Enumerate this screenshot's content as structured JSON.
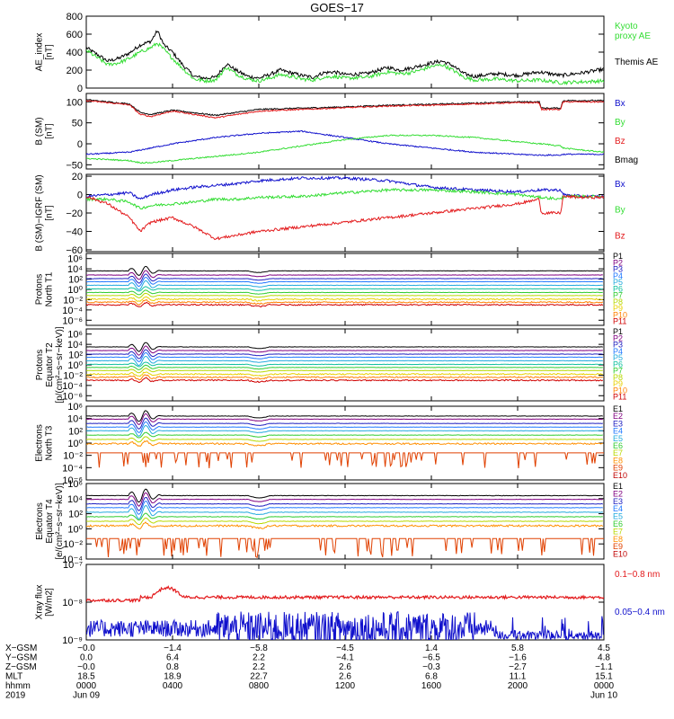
{
  "title": "GOES−17",
  "colors": {
    "black": "#000000",
    "red": "#e31a1c",
    "green": "#33dd33",
    "blue": "#1010cc",
    "p_colors": [
      "#000000",
      "#800080",
      "#2020c0",
      "#1f78ff",
      "#22aadd",
      "#10c0a0",
      "#30cc30",
      "#b8d800",
      "#e8d000",
      "#ff8000",
      "#d00000"
    ],
    "e_colors": [
      "#000000",
      "#800080",
      "#2020c0",
      "#1f78ff",
      "#22aadd",
      "#30cc30",
      "#b8d800",
      "#ff9000",
      "#e04000",
      "#c00000"
    ]
  },
  "chart_data": [
    {
      "type": "line",
      "ylabel": [
        "AE_index",
        "[nT]"
      ],
      "ylim": [
        0,
        800
      ],
      "yticks": [
        "800",
        "600",
        "400",
        "200",
        "0"
      ],
      "legend": [
        {
          "name": "Kyoto proxy AE",
          "lines": [
            "Kyoto",
            "proxy AE"
          ],
          "color": "#33dd33"
        },
        {
          "name": "Themis AE",
          "lines": [
            "Themis AE"
          ],
          "color": "#000000"
        }
      ],
      "x": [
        0,
        1,
        1.5,
        2,
        2.5,
        3,
        3.3,
        3.6,
        4,
        4.5,
        5,
        5.5,
        6,
        6.5,
        7,
        7.5,
        8,
        8.5,
        9,
        9.5,
        10,
        10.5,
        11,
        11.5,
        12,
        13,
        14,
        14.5,
        15,
        15.5,
        16,
        16.5,
        17,
        17.5,
        18,
        19,
        20,
        21,
        22,
        23,
        24
      ],
      "series": [
        {
          "name": "Themis AE",
          "color": "#000000",
          "values": [
            450,
            300,
            330,
            390,
            480,
            520,
            640,
            480,
            400,
            250,
            130,
            110,
            120,
            270,
            190,
            130,
            110,
            150,
            200,
            170,
            140,
            120,
            170,
            180,
            150,
            160,
            230,
            200,
            220,
            250,
            280,
            300,
            250,
            160,
            130,
            160,
            140,
            180,
            140,
            170,
            210
          ]
        },
        {
          "name": "Kyoto proxy AE",
          "color": "#33dd33",
          "values": [
            420,
            260,
            280,
            330,
            400,
            450,
            500,
            430,
            330,
            210,
            100,
            80,
            90,
            230,
            150,
            100,
            80,
            110,
            150,
            130,
            100,
            90,
            120,
            130,
            110,
            120,
            180,
            160,
            170,
            200,
            240,
            260,
            200,
            120,
            90,
            100,
            80,
            90,
            60,
            70,
            80
          ]
        }
      ]
    },
    {
      "type": "line",
      "ylabel": [
        "B (SM)",
        "[nT]"
      ],
      "ylim": [
        -60,
        120
      ],
      "yticks": [
        "100",
        "50",
        "0",
        "−50"
      ],
      "legend": [
        {
          "name": "Bx",
          "lines": [
            "Bx"
          ],
          "color": "#1010cc"
        },
        {
          "name": "By",
          "lines": [
            "By"
          ],
          "color": "#33dd33"
        },
        {
          "name": "Bz",
          "lines": [
            "Bz"
          ],
          "color": "#e31a1c"
        },
        {
          "name": "Bmag",
          "lines": [
            "Bmag"
          ],
          "color": "#000000"
        }
      ],
      "x": [
        0,
        2,
        2.5,
        3,
        4,
        6,
        8,
        10,
        12,
        14,
        16,
        18,
        20,
        21,
        21.1,
        22,
        22.1,
        23,
        24
      ],
      "series": [
        {
          "name": "Bmag",
          "color": "#000000",
          "values": [
            105,
            95,
            75,
            70,
            80,
            68,
            82,
            85,
            88,
            92,
            94,
            97,
            100,
            100,
            85,
            85,
            103,
            103,
            103
          ]
        },
        {
          "name": "Bz",
          "color": "#e31a1c",
          "values": [
            103,
            93,
            70,
            65,
            78,
            62,
            78,
            82,
            86,
            90,
            92,
            95,
            98,
            98,
            82,
            82,
            100,
            100,
            100
          ]
        },
        {
          "name": "Bx",
          "color": "#1010cc",
          "values": [
            -25,
            -20,
            -15,
            -10,
            0,
            15,
            25,
            30,
            15,
            0,
            -10,
            -20,
            -25,
            -27,
            -27,
            -27,
            -25,
            -25,
            -25
          ]
        },
        {
          "name": "By",
          "color": "#33dd33",
          "values": [
            -35,
            -40,
            -45,
            -45,
            -40,
            -30,
            -20,
            -5,
            10,
            20,
            20,
            15,
            5,
            0,
            0,
            -5,
            -10,
            -15,
            -20
          ]
        }
      ]
    },
    {
      "type": "line",
      "ylabel": [
        "B (SM)−IGRF (SM)",
        "[nT]"
      ],
      "ylim": [
        -62,
        22
      ],
      "yticks": [
        "20",
        "0",
        "−20",
        "−40",
        "−60"
      ],
      "legend": [
        {
          "name": "Bx",
          "lines": [
            "Bx"
          ],
          "color": "#1010cc"
        },
        {
          "name": "By",
          "lines": [
            "By"
          ],
          "color": "#33dd33"
        },
        {
          "name": "Bz",
          "lines": [
            "Bz"
          ],
          "color": "#e31a1c"
        }
      ],
      "x": [
        0,
        1,
        2,
        2.5,
        3,
        4,
        5,
        6,
        7,
        8,
        10,
        12,
        14,
        16,
        18,
        20,
        21,
        21.1,
        22,
        22.1,
        23,
        24
      ],
      "series": [
        {
          "name": "Bx",
          "color": "#1010cc",
          "values": [
            -2,
            0,
            2,
            -5,
            0,
            5,
            8,
            10,
            12,
            15,
            18,
            18,
            15,
            8,
            5,
            3,
            5,
            5,
            5,
            0,
            -2,
            -2
          ]
        },
        {
          "name": "By",
          "color": "#33dd33",
          "values": [
            -5,
            -5,
            -8,
            -15,
            -12,
            -10,
            -8,
            -5,
            -5,
            -3,
            -2,
            2,
            5,
            5,
            3,
            0,
            -3,
            -3,
            -5,
            -2,
            -2,
            -2
          ]
        },
        {
          "name": "Bz",
          "color": "#e31a1c",
          "values": [
            -2,
            -10,
            -25,
            -40,
            -30,
            -25,
            -35,
            -48,
            -44,
            -40,
            -35,
            -30,
            -25,
            -20,
            -15,
            -10,
            -5,
            -20,
            -20,
            -2,
            -3,
            -3
          ]
        }
      ]
    },
    {
      "type": "line",
      "ylabel": [
        "Protons",
        "North T1"
      ],
      "scale": "log",
      "ylim": [
        -7,
        7
      ],
      "yticks": [
        "10⁶",
        "10⁴",
        "10²",
        "10⁰",
        "10⁻²",
        "10⁻⁴",
        "10⁻⁶"
      ],
      "labels": [
        "P1",
        "P2",
        "P3",
        "P4",
        "P5",
        "P6",
        "P7",
        "P8",
        "P9",
        "P10",
        "P11"
      ],
      "levels": [
        3.6,
        2.8,
        2.1,
        1.5,
        0.8,
        0.1,
        -0.6,
        -1.2,
        -1.9,
        -2.5,
        -3.0
      ],
      "event_hour": 2.6
    },
    {
      "type": "line",
      "ylabel": [
        "Protons",
        "Equator T2",
        "[p/(cm²−s−sr−keV)]"
      ],
      "scale": "log",
      "ylim": [
        -7,
        7
      ],
      "yticks": [
        "10⁶",
        "10⁴",
        "10²",
        "10⁰",
        "10⁻²",
        "10⁻⁴",
        "10⁻⁶"
      ],
      "labels": [
        "P1",
        "P2",
        "P3",
        "P4",
        "P5",
        "P6",
        "P7",
        "P8",
        "P9",
        "P10",
        "P11"
      ],
      "levels": [
        3.5,
        2.8,
        2.1,
        1.5,
        0.8,
        0.1,
        -0.5,
        -1.1,
        -1.8,
        -2.4,
        -3.0
      ],
      "event_hour": 2.6
    },
    {
      "type": "line",
      "ylabel": [
        "Electrons",
        "North T3"
      ],
      "scale": "log",
      "ylim": [
        -6,
        6
      ],
      "yticks": [
        "10⁶",
        "10⁴",
        "10²",
        "10⁰",
        "10⁻²",
        "10⁻⁴",
        "10⁻⁶"
      ],
      "labels": [
        "E1",
        "E2",
        "E3",
        "E4",
        "E5",
        "E6",
        "E7",
        "E8",
        "E9",
        "E10"
      ],
      "levels": [
        4.4,
        3.9,
        3.2,
        2.6,
        2.0,
        1.3,
        0.6,
        -0.1,
        -1.6,
        -2.2
      ],
      "event_hour": 2.6
    },
    {
      "type": "line",
      "ylabel": [
        "Electrons",
        "Equator T4",
        "[e/(cm²−s−sr−keV)]"
      ],
      "scale": "log",
      "ylim": [
        -4,
        6
      ],
      "yticks": [
        "10⁶",
        "10⁴",
        "10²",
        "10⁰",
        "10⁻²",
        "10⁻⁴"
      ],
      "labels": [
        "E1",
        "E2",
        "E3",
        "E4",
        "E5",
        "E6",
        "E7",
        "E8",
        "E9",
        "E10"
      ],
      "levels": [
        4.4,
        3.9,
        3.3,
        2.8,
        2.2,
        1.6,
        1.0,
        0.4,
        -1.3,
        -1.9
      ],
      "event_hour": 2.6
    },
    {
      "type": "line",
      "ylabel": [
        "Xray flux",
        "[W/m2]"
      ],
      "scale": "log",
      "ylim": [
        -9,
        -7
      ],
      "yticks": [
        "10⁻⁷",
        "10⁻⁸",
        "10⁻⁹"
      ],
      "legend": [
        {
          "name": "0.1−0.8 nm",
          "lines": [
            "0.1−0.8 nm"
          ],
          "color": "#e31a1c"
        },
        {
          "name": "0.05−0.4 nm",
          "lines": [
            "0.05−0.4 nm"
          ],
          "color": "#1010cc"
        }
      ],
      "long_level": -7.87,
      "short_level": -8.7
    }
  ],
  "x_axis": {
    "hours": [
      0,
      4,
      8,
      12,
      16,
      20,
      24
    ],
    "rows": [
      {
        "label": "X−GSM",
        "values": [
          "−0.0",
          "−1.4",
          "−5.8",
          "−4.5",
          "1.4",
          "5.8",
          "4.5"
        ]
      },
      {
        "label": "Y−GSM",
        "values": [
          "0.0",
          "6.4",
          "2.2",
          "−4.1",
          "−6.5",
          "−1.6",
          "4.8"
        ]
      },
      {
        "label": "Z−GSM",
        "values": [
          "−0.0",
          "0.8",
          "2.2",
          "2.6",
          "−0.3",
          "−2.7",
          "−1.1"
        ]
      },
      {
        "label": "MLT",
        "values": [
          "18.5",
          "18.9",
          "22.7",
          "2.6",
          "6.8",
          "11.1",
          "15.1"
        ]
      },
      {
        "label": "hhmm",
        "values": [
          "0000",
          "0400",
          "0800",
          "1200",
          "1600",
          "2000",
          "0000"
        ]
      },
      {
        "label": "2019",
        "values": [
          "Jun 09",
          "",
          "",
          "",
          "",
          "",
          "Jun 10"
        ]
      }
    ]
  }
}
